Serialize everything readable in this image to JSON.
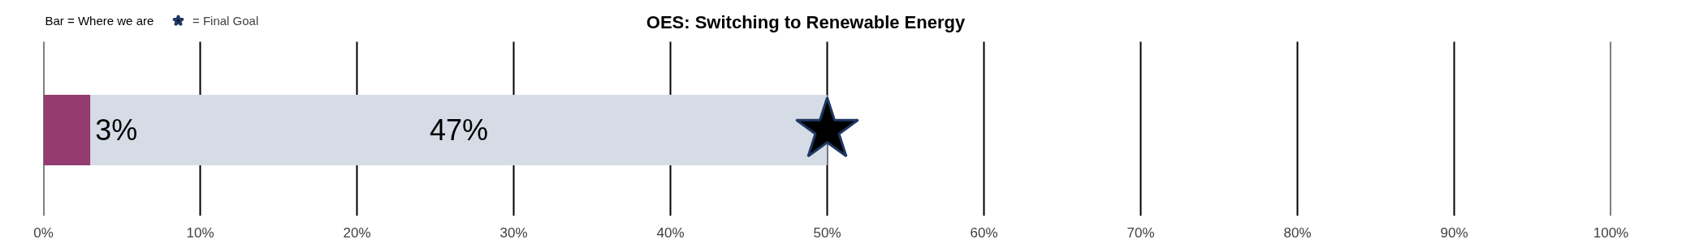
{
  "chart_data": {
    "type": "bar",
    "title": "OES: Switching to Renewable Energy",
    "orientation": "horizontal",
    "stacked": true,
    "categories": [
      null
    ],
    "series": [
      {
        "color": "#943b6f",
        "values": [
          3
        ],
        "value_labels": [
          "3%"
        ]
      },
      {
        "color": "#d6dce5",
        "values": [
          47
        ],
        "value_labels": [
          "47%"
        ]
      },
      {
        "type": "scatter",
        "name": "= Final Goal",
        "color": "#000000",
        "marker": "star",
        "values": [
          50
        ]
      }
    ],
    "xlim": [
      0,
      100
    ],
    "xticks": [
      {
        "value": 0,
        "label": "0%"
      },
      {
        "value": 10,
        "label": "10%"
      },
      {
        "value": 20,
        "label": "20%"
      },
      {
        "value": 30,
        "label": "30%"
      },
      {
        "value": 40,
        "label": "40%"
      },
      {
        "value": 50,
        "label": "50%"
      },
      {
        "value": 60,
        "label": "60%"
      },
      {
        "value": 70,
        "label": "70%"
      },
      {
        "value": 80,
        "label": "80%"
      },
      {
        "value": 90,
        "label": "90%"
      },
      {
        "value": 100,
        "label": "100%"
      }
    ],
    "grid": "x",
    "legend": "top left",
    "annotations": [
      "Bar = Where we are"
    ]
  }
}
